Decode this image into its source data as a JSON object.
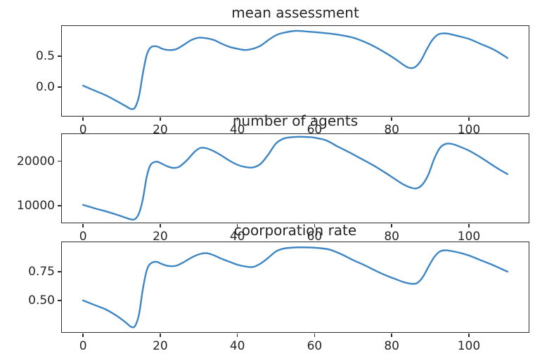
{
  "figure": {
    "background": "#ffffff",
    "line_color": "#3d86c3",
    "frame_color": "#2b2b2b",
    "text_color": "#262626"
  },
  "chart_data": [
    {
      "type": "line",
      "title": "mean assessment",
      "xlabel": "",
      "ylabel": "",
      "xlim": [
        -5.5,
        115.5
      ],
      "ylim": [
        -0.47,
        0.99
      ],
      "grid": false,
      "legend": "none",
      "x_ticks": [
        {
          "value": 0,
          "label": "0"
        },
        {
          "value": 20,
          "label": "20"
        },
        {
          "value": 40,
          "label": "40"
        },
        {
          "value": 60,
          "label": "60"
        },
        {
          "value": 80,
          "label": "80"
        },
        {
          "value": 100,
          "label": "100"
        }
      ],
      "y_ticks": [
        {
          "value": 0.0,
          "label": "0.0"
        },
        {
          "value": 0.5,
          "label": "0.5"
        }
      ],
      "points": [
        [
          0,
          0.02
        ],
        [
          3,
          -0.06
        ],
        [
          6,
          -0.14
        ],
        [
          9,
          -0.24
        ],
        [
          11,
          -0.31
        ],
        [
          12.5,
          -0.36
        ],
        [
          13.5,
          -0.33
        ],
        [
          14.5,
          -0.15
        ],
        [
          15.5,
          0.22
        ],
        [
          16.5,
          0.52
        ],
        [
          17.5,
          0.64
        ],
        [
          19,
          0.66
        ],
        [
          20.5,
          0.62
        ],
        [
          22,
          0.6
        ],
        [
          24,
          0.61
        ],
        [
          26,
          0.68
        ],
        [
          28,
          0.76
        ],
        [
          30,
          0.8
        ],
        [
          32,
          0.79
        ],
        [
          34,
          0.76
        ],
        [
          36,
          0.7
        ],
        [
          38,
          0.65
        ],
        [
          40,
          0.62
        ],
        [
          42,
          0.6
        ],
        [
          44,
          0.62
        ],
        [
          46,
          0.67
        ],
        [
          48,
          0.76
        ],
        [
          50,
          0.84
        ],
        [
          52,
          0.88
        ],
        [
          55,
          0.91
        ],
        [
          58,
          0.9
        ],
        [
          62,
          0.88
        ],
        [
          66,
          0.85
        ],
        [
          70,
          0.8
        ],
        [
          73,
          0.73
        ],
        [
          76,
          0.64
        ],
        [
          79,
          0.53
        ],
        [
          81,
          0.45
        ],
        [
          83,
          0.36
        ],
        [
          84.5,
          0.31
        ],
        [
          86,
          0.32
        ],
        [
          87.5,
          0.42
        ],
        [
          89,
          0.6
        ],
        [
          90.5,
          0.76
        ],
        [
          92,
          0.85
        ],
        [
          93.5,
          0.87
        ],
        [
          95,
          0.86
        ],
        [
          97,
          0.83
        ],
        [
          100,
          0.78
        ],
        [
          103,
          0.7
        ],
        [
          106,
          0.62
        ],
        [
          108,
          0.55
        ],
        [
          110,
          0.47
        ]
      ]
    },
    {
      "type": "line",
      "title": "number of agents",
      "xlabel": "",
      "ylabel": "",
      "xlim": [
        -5.5,
        115.5
      ],
      "ylim": [
        6200,
        26100
      ],
      "grid": false,
      "legend": "none",
      "x_ticks": [
        {
          "value": 0,
          "label": "0"
        },
        {
          "value": 20,
          "label": "20"
        },
        {
          "value": 40,
          "label": "40"
        },
        {
          "value": 60,
          "label": "60"
        },
        {
          "value": 80,
          "label": "80"
        },
        {
          "value": 100,
          "label": "100"
        }
      ],
      "y_ticks": [
        {
          "value": 10000,
          "label": "10000"
        },
        {
          "value": 20000,
          "label": "20000"
        }
      ],
      "points": [
        [
          0,
          10200
        ],
        [
          3,
          9400
        ],
        [
          6,
          8700
        ],
        [
          9,
          7900
        ],
        [
          11,
          7300
        ],
        [
          12.5,
          6900
        ],
        [
          13.5,
          7000
        ],
        [
          14.5,
          8300
        ],
        [
          15.5,
          11500
        ],
        [
          16.5,
          16500
        ],
        [
          17.5,
          19200
        ],
        [
          19,
          19900
        ],
        [
          20.5,
          19400
        ],
        [
          22,
          18800
        ],
        [
          23.5,
          18500
        ],
        [
          25,
          18800
        ],
        [
          27,
          20300
        ],
        [
          29,
          22200
        ],
        [
          30.5,
          23000
        ],
        [
          32,
          22900
        ],
        [
          34,
          22200
        ],
        [
          36,
          21200
        ],
        [
          38,
          20100
        ],
        [
          40,
          19200
        ],
        [
          42,
          18700
        ],
        [
          44,
          18600
        ],
        [
          46,
          19400
        ],
        [
          48,
          21500
        ],
        [
          50,
          24000
        ],
        [
          52,
          25100
        ],
        [
          54,
          25400
        ],
        [
          56,
          25500
        ],
        [
          58,
          25450
        ],
        [
          60,
          25300
        ],
        [
          63,
          24700
        ],
        [
          66,
          23300
        ],
        [
          69,
          22000
        ],
        [
          72,
          20600
        ],
        [
          75,
          19200
        ],
        [
          78,
          17600
        ],
        [
          81,
          15900
        ],
        [
          83,
          14800
        ],
        [
          85,
          14050
        ],
        [
          86.5,
          13900
        ],
        [
          88,
          14800
        ],
        [
          89.5,
          17000
        ],
        [
          91,
          20500
        ],
        [
          92.5,
          23000
        ],
        [
          94,
          23900
        ],
        [
          95.5,
          23900
        ],
        [
          97,
          23500
        ],
        [
          100,
          22400
        ],
        [
          103,
          20900
        ],
        [
          106,
          19200
        ],
        [
          108,
          18100
        ],
        [
          110,
          17100
        ]
      ]
    },
    {
      "type": "line",
      "title": "coorporation rate",
      "xlabel": "",
      "ylabel": "",
      "xlim": [
        -5.5,
        115.5
      ],
      "ylim": [
        0.225,
        1.005
      ],
      "grid": false,
      "legend": "none",
      "x_ticks": [
        {
          "value": 0,
          "label": "0"
        },
        {
          "value": 20,
          "label": "20"
        },
        {
          "value": 40,
          "label": "40"
        },
        {
          "value": 60,
          "label": "60"
        },
        {
          "value": 80,
          "label": "80"
        },
        {
          "value": 100,
          "label": "100"
        }
      ],
      "y_ticks": [
        {
          "value": 0.5,
          "label": "0.50"
        },
        {
          "value": 0.75,
          "label": "0.75"
        }
      ],
      "points": [
        [
          0,
          0.5
        ],
        [
          3,
          0.46
        ],
        [
          6,
          0.42
        ],
        [
          9,
          0.36
        ],
        [
          11,
          0.31
        ],
        [
          12.5,
          0.27
        ],
        [
          13.5,
          0.28
        ],
        [
          14.5,
          0.38
        ],
        [
          15.5,
          0.6
        ],
        [
          16.5,
          0.76
        ],
        [
          17.5,
          0.82
        ],
        [
          19,
          0.835
        ],
        [
          20.5,
          0.815
        ],
        [
          22,
          0.8
        ],
        [
          24,
          0.8
        ],
        [
          26,
          0.83
        ],
        [
          28,
          0.87
        ],
        [
          30,
          0.9
        ],
        [
          32,
          0.91
        ],
        [
          34,
          0.89
        ],
        [
          36,
          0.86
        ],
        [
          38,
          0.835
        ],
        [
          40,
          0.81
        ],
        [
          42,
          0.795
        ],
        [
          44,
          0.79
        ],
        [
          46,
          0.82
        ],
        [
          48,
          0.87
        ],
        [
          50,
          0.925
        ],
        [
          52,
          0.95
        ],
        [
          55,
          0.96
        ],
        [
          58,
          0.96
        ],
        [
          61,
          0.955
        ],
        [
          64,
          0.94
        ],
        [
          67,
          0.9
        ],
        [
          70,
          0.85
        ],
        [
          73,
          0.805
        ],
        [
          76,
          0.755
        ],
        [
          79,
          0.71
        ],
        [
          81,
          0.685
        ],
        [
          83,
          0.66
        ],
        [
          85,
          0.645
        ],
        [
          86.5,
          0.65
        ],
        [
          88,
          0.7
        ],
        [
          89.5,
          0.79
        ],
        [
          91,
          0.875
        ],
        [
          92.5,
          0.925
        ],
        [
          94,
          0.935
        ],
        [
          96,
          0.925
        ],
        [
          98,
          0.91
        ],
        [
          100,
          0.89
        ],
        [
          103,
          0.85
        ],
        [
          106,
          0.81
        ],
        [
          108,
          0.78
        ],
        [
          110,
          0.75
        ]
      ]
    }
  ]
}
